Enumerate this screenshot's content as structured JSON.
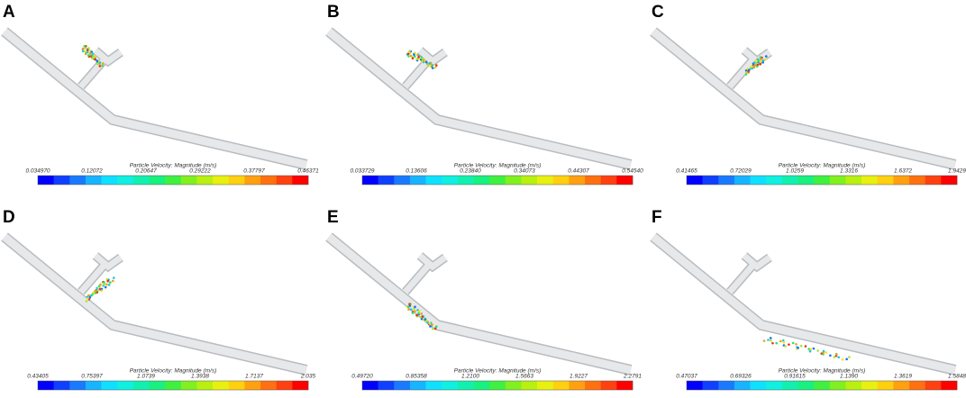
{
  "panels": [
    {
      "label": "A",
      "colorbar_title": "Particle Velocity: Magnitude (m/s)",
      "ticks": [
        "0.034970",
        "0.12072",
        "0.20647",
        "0.29222",
        "0.37797",
        "0.46371"
      ]
    },
    {
      "label": "B",
      "colorbar_title": "Particle Velocity: Magnitude (m/s)",
      "ticks": [
        "0.033729",
        "0.13606",
        "0.23840",
        "0.34073",
        "0.44307",
        "0.54540"
      ]
    },
    {
      "label": "C",
      "colorbar_title": "Particle Velocity: Magnitude (m/s)",
      "ticks": [
        "0.41465",
        "0.72029",
        "1.0259",
        "1.3316",
        "1.6372",
        "1.9429"
      ]
    },
    {
      "label": "D",
      "colorbar_title": "Particle Velocity: Magnitude (m/s)",
      "ticks": [
        "0.43405",
        "0.75397",
        "1.0739",
        "1.3938",
        "1.7137",
        "2.035"
      ]
    },
    {
      "label": "E",
      "colorbar_title": "Particle Velocity: Magnitude (m/s)",
      "ticks": [
        "0.49720",
        "0.85358",
        "1.2100",
        "1.5663",
        "1.9227",
        "2.2791"
      ]
    },
    {
      "label": "F",
      "colorbar_title": "Particle Velocity: Magnitude (m/s)",
      "ticks": [
        "0.47037",
        "0.69326",
        "0.91615",
        "1.1390",
        "1.3619",
        "1.5848"
      ]
    }
  ]
}
